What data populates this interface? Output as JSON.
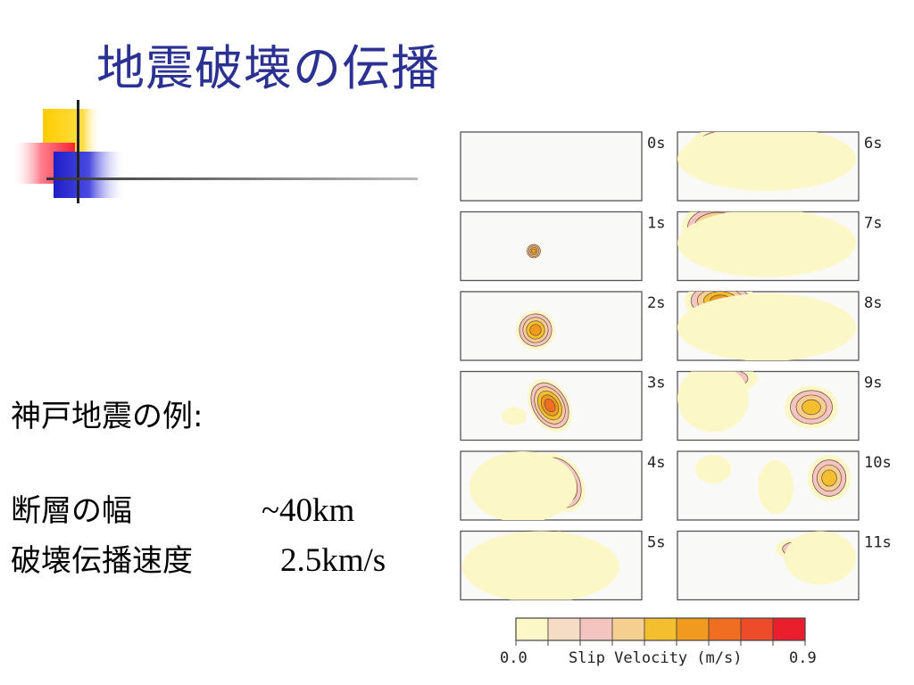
{
  "slide": {
    "title": "地震破壊の伝播",
    "example_heading": "神戸地震の例:",
    "fault_width_label": "断層の幅",
    "fault_width_value": "~40km",
    "rupture_speed_label": "破壊伝播速度",
    "rupture_speed_value": "2.5km/s"
  },
  "figure": {
    "left_column_labels": [
      "0s",
      "1s",
      "2s",
      "3s",
      "4s",
      "5s"
    ],
    "right_column_labels": [
      "6s",
      "7s",
      "8s",
      "9s",
      "10s",
      "11s"
    ],
    "colorbar": {
      "min_label": "0.0",
      "max_label": "0.9",
      "axis_label": "Slip Velocity (m/s)",
      "colors": [
        "#fbf7c6",
        "#f6dcc4",
        "#f3c4c0",
        "#f4cf90",
        "#f3bf2e",
        "#f09a1e",
        "#ef6e22",
        "#ee4b2b",
        "#ea1f2e"
      ]
    }
  },
  "decoration": {
    "yellow": "#ffcc00",
    "red": "#ff3333",
    "blue": "#2222cc",
    "title_color": "#2b3192"
  }
}
